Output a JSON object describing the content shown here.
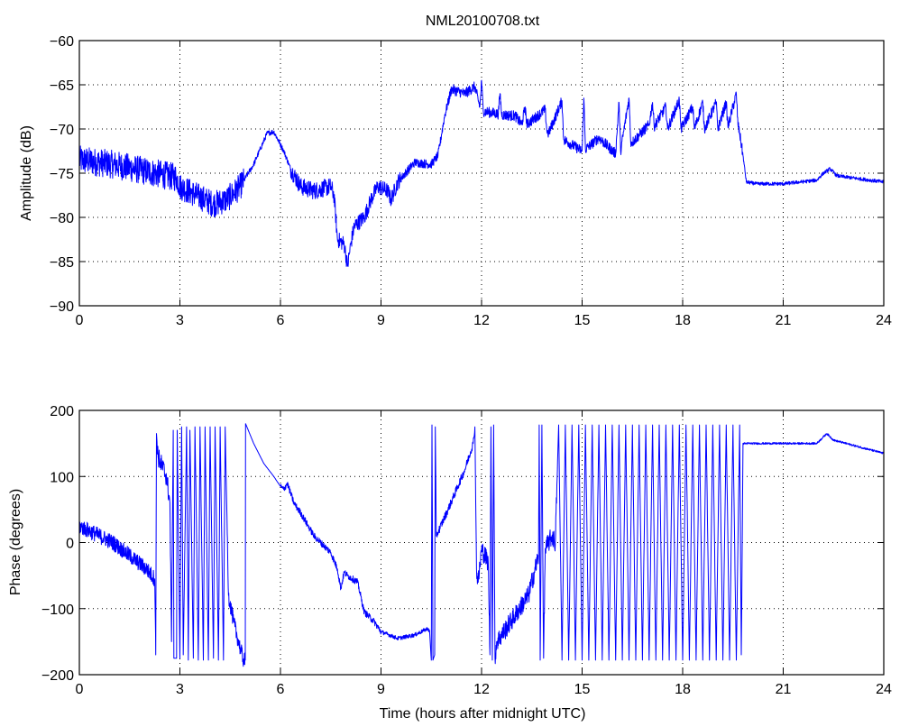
{
  "chart_data": [
    {
      "type": "line",
      "title": "NML20100708.txt",
      "xlabel": "",
      "ylabel": "Amplitude (dB)",
      "xlim": [
        0,
        24
      ],
      "ylim": [
        -90,
        -60
      ],
      "xticks": [
        "0",
        "3",
        "6",
        "9",
        "12",
        "15",
        "18",
        "21",
        "24"
      ],
      "yticks": [
        "-60",
        "-65",
        "-70",
        "-75",
        "-80",
        "-85",
        "-90"
      ],
      "grid": true,
      "color": "#0000ff",
      "series": [
        {
          "name": "Amplitude",
          "points": [
            [
              0,
              -73.5
            ],
            [
              1,
              -74
            ],
            [
              2,
              -74.8
            ],
            [
              2.9,
              -75.5
            ],
            [
              3,
              -76.5
            ],
            [
              3.5,
              -77.5
            ],
            [
              4,
              -78.5
            ],
            [
              4.4,
              -78
            ],
            [
              4.8,
              -76.5
            ],
            [
              5.2,
              -74
            ],
            [
              5.6,
              -70.5
            ],
            [
              5.8,
              -70.3
            ],
            [
              6.1,
              -72.5
            ],
            [
              6.3,
              -74.5
            ],
            [
              6.6,
              -76.5
            ],
            [
              7,
              -77
            ],
            [
              7.5,
              -76.5
            ],
            [
              7.6,
              -77.5
            ],
            [
              7.7,
              -82.5
            ],
            [
              7.9,
              -83
            ],
            [
              8.0,
              -85.5
            ],
            [
              8.1,
              -83
            ],
            [
              8.2,
              -81
            ],
            [
              8.5,
              -80
            ],
            [
              8.7,
              -78
            ],
            [
              8.9,
              -76.5
            ],
            [
              9.2,
              -77
            ],
            [
              9.3,
              -78
            ],
            [
              9.5,
              -76
            ],
            [
              10,
              -73.8
            ],
            [
              10.5,
              -74
            ],
            [
              10.7,
              -73
            ],
            [
              10.9,
              -68.5
            ],
            [
              11.1,
              -65.5
            ],
            [
              11.5,
              -66
            ],
            [
              11.8,
              -65.2
            ],
            [
              11.95,
              -67.5
            ],
            [
              12.0,
              -64.5
            ],
            [
              12.05,
              -68
            ],
            [
              12.5,
              -68.3
            ],
            [
              12.55,
              -66
            ],
            [
              12.6,
              -68.4
            ],
            [
              13,
              -68.5
            ],
            [
              13.2,
              -69.5
            ],
            [
              13.3,
              -67.5
            ],
            [
              13.35,
              -69.5
            ],
            [
              13.9,
              -67.8
            ],
            [
              13.95,
              -70.3
            ],
            [
              14,
              -70.5
            ],
            [
              14.4,
              -66.8
            ],
            [
              14.45,
              -71.2
            ],
            [
              15,
              -72.5
            ],
            [
              15.05,
              -66.5
            ],
            [
              15.1,
              -72.3
            ],
            [
              15.5,
              -71
            ],
            [
              16,
              -72.8
            ],
            [
              16.1,
              -67
            ],
            [
              16.15,
              -72.5
            ],
            [
              16.4,
              -66.5
            ],
            [
              16.45,
              -71.5
            ],
            [
              16.5,
              -71.5
            ],
            [
              17,
              -69.5
            ],
            [
              17.1,
              -67
            ],
            [
              17.15,
              -69.7
            ],
            [
              17.5,
              -67.5
            ],
            [
              17.55,
              -70
            ],
            [
              17.9,
              -66.7
            ],
            [
              17.95,
              -70
            ],
            [
              18.3,
              -67.5
            ],
            [
              18.35,
              -70
            ],
            [
              18.6,
              -67
            ],
            [
              18.65,
              -70
            ],
            [
              19,
              -67
            ],
            [
              19.05,
              -70
            ],
            [
              19.3,
              -67
            ],
            [
              19.35,
              -69.8
            ],
            [
              19.6,
              -66
            ],
            [
              19.65,
              -69.5
            ],
            [
              19.7,
              -70.5
            ],
            [
              19.8,
              -73
            ],
            [
              19.9,
              -76
            ],
            [
              20.2,
              -76.2
            ],
            [
              21,
              -76.2
            ],
            [
              22,
              -75.8
            ],
            [
              22.2,
              -75
            ],
            [
              22.4,
              -74.5
            ],
            [
              22.6,
              -75.3
            ],
            [
              24,
              -76
            ]
          ],
          "noise": [
            [
              0,
              2.9,
              1.6
            ],
            [
              2.9,
              4.9,
              1.5
            ],
            [
              4.9,
              6.3,
              0.3
            ],
            [
              6.3,
              7.6,
              1.0
            ],
            [
              7.6,
              9.6,
              0.9
            ],
            [
              9.6,
              11,
              0.5
            ],
            [
              11,
              19.8,
              0.6
            ],
            [
              19.8,
              24,
              0.2
            ]
          ]
        }
      ]
    },
    {
      "type": "line",
      "title": "",
      "xlabel": "Time (hours after midnight UTC)",
      "ylabel": "Phase (degrees)",
      "xlim": [
        0,
        24
      ],
      "ylim": [
        -200,
        200
      ],
      "xticks": [
        "0",
        "3",
        "6",
        "9",
        "12",
        "15",
        "18",
        "21",
        "24"
      ],
      "yticks": [
        "200",
        "100",
        "0",
        "-100",
        "-200"
      ],
      "grid": true,
      "color": "#0000ff",
      "series": [
        {
          "name": "Phase",
          "points": [
            [
              0,
              25
            ],
            [
              1,
              0
            ],
            [
              2,
              -40
            ],
            [
              2.25,
              -55
            ],
            [
              2.28,
              -170
            ],
            [
              2.3,
              165
            ],
            [
              2.35,
              130
            ],
            [
              2.6,
              100
            ],
            [
              2.7,
              60
            ],
            [
              2.75,
              -150
            ],
            [
              2.8,
              170
            ],
            [
              2.82,
              -175
            ],
            [
              2.9,
              -175
            ],
            [
              2.92,
              170
            ],
            [
              3.0,
              -175
            ],
            [
              3.05,
              175
            ],
            [
              3.1,
              -170
            ],
            [
              3.2,
              175
            ],
            [
              3.25,
              -178
            ],
            [
              3.3,
              170
            ],
            [
              3.4,
              -175
            ],
            [
              3.45,
              175
            ],
            [
              3.55,
              -178
            ],
            [
              3.6,
              175
            ],
            [
              3.7,
              -178
            ],
            [
              3.75,
              175
            ],
            [
              3.85,
              -178
            ],
            [
              3.9,
              175
            ],
            [
              4.0,
              -175
            ],
            [
              4.05,
              175
            ],
            [
              4.15,
              -178
            ],
            [
              4.2,
              175
            ],
            [
              4.3,
              -178
            ],
            [
              4.35,
              175
            ],
            [
              4.45,
              -80
            ],
            [
              4.6,
              -120
            ],
            [
              4.8,
              -160
            ],
            [
              4.9,
              -178
            ],
            [
              4.95,
              -178
            ],
            [
              4.96,
              180
            ],
            [
              5.2,
              150
            ],
            [
              5.5,
              120
            ],
            [
              5.8,
              100
            ],
            [
              6.0,
              85
            ],
            [
              6.1,
              80
            ],
            [
              6.2,
              90
            ],
            [
              6.4,
              60
            ],
            [
              6.6,
              45
            ],
            [
              7.0,
              10
            ],
            [
              7.5,
              -15
            ],
            [
              7.7,
              -40
            ],
            [
              7.8,
              -70
            ],
            [
              7.9,
              -45
            ],
            [
              8.0,
              -50
            ],
            [
              8.3,
              -60
            ],
            [
              8.5,
              -105
            ],
            [
              8.8,
              -120
            ],
            [
              9.0,
              -135
            ],
            [
              9.5,
              -145
            ],
            [
              10.0,
              -140
            ],
            [
              10.4,
              -130
            ],
            [
              10.45,
              -135
            ],
            [
              10.5,
              -178
            ],
            [
              10.52,
              178
            ],
            [
              10.55,
              -178
            ],
            [
              10.6,
              -170
            ],
            [
              10.62,
              175
            ],
            [
              10.65,
              10
            ],
            [
              11.0,
              50
            ],
            [
              11.5,
              110
            ],
            [
              11.75,
              150
            ],
            [
              11.8,
              175
            ],
            [
              11.85,
              -40
            ],
            [
              11.9,
              -60
            ],
            [
              12.0,
              -10
            ],
            [
              12.2,
              -30
            ],
            [
              12.25,
              -170
            ],
            [
              12.28,
              175
            ],
            [
              12.32,
              -178
            ],
            [
              12.36,
              178
            ],
            [
              12.4,
              -175
            ],
            [
              12.45,
              -150
            ],
            [
              12.6,
              -140
            ],
            [
              13.0,
              -110
            ],
            [
              13.4,
              -80
            ],
            [
              13.6,
              -40
            ],
            [
              13.7,
              -20
            ],
            [
              13.72,
              178
            ],
            [
              13.75,
              -178
            ],
            [
              13.8,
              178
            ],
            [
              13.85,
              -175
            ],
            [
              13.9,
              -10
            ],
            [
              14.1,
              10
            ],
            [
              14.2,
              0
            ],
            [
              14.3,
              178
            ],
            [
              14.4,
              -178
            ],
            [
              14.5,
              178
            ],
            [
              14.6,
              -178
            ],
            [
              14.7,
              178
            ],
            [
              14.8,
              -178
            ],
            [
              14.9,
              178
            ],
            [
              15.0,
              -178
            ],
            [
              15.1,
              178
            ],
            [
              15.2,
              -178
            ],
            [
              15.3,
              178
            ],
            [
              15.4,
              -178
            ],
            [
              15.5,
              178
            ],
            [
              15.6,
              -178
            ],
            [
              15.7,
              178
            ],
            [
              15.8,
              -178
            ],
            [
              15.9,
              178
            ],
            [
              16.0,
              -178
            ],
            [
              16.1,
              178
            ],
            [
              16.2,
              -178
            ],
            [
              16.3,
              178
            ],
            [
              16.4,
              -178
            ],
            [
              16.5,
              178
            ],
            [
              16.6,
              -178
            ],
            [
              16.7,
              178
            ],
            [
              16.8,
              -178
            ],
            [
              16.9,
              178
            ],
            [
              17.0,
              -178
            ],
            [
              17.1,
              178
            ],
            [
              17.2,
              -178
            ],
            [
              17.3,
              178
            ],
            [
              17.4,
              -178
            ],
            [
              17.5,
              178
            ],
            [
              17.6,
              -178
            ],
            [
              17.7,
              178
            ],
            [
              17.8,
              -178
            ],
            [
              17.9,
              178
            ],
            [
              18.0,
              -178
            ],
            [
              18.1,
              178
            ],
            [
              18.2,
              -178
            ],
            [
              18.3,
              178
            ],
            [
              18.4,
              -178
            ],
            [
              18.5,
              178
            ],
            [
              18.6,
              -178
            ],
            [
              18.7,
              178
            ],
            [
              18.8,
              -178
            ],
            [
              18.9,
              178
            ],
            [
              19.0,
              -178
            ],
            [
              19.1,
              178
            ],
            [
              19.2,
              -178
            ],
            [
              19.3,
              178
            ],
            [
              19.4,
              -178
            ],
            [
              19.5,
              178
            ],
            [
              19.6,
              -178
            ],
            [
              19.7,
              178
            ],
            [
              19.75,
              -170
            ],
            [
              19.8,
              150
            ],
            [
              21,
              150
            ],
            [
              22,
              150
            ],
            [
              22.3,
              165
            ],
            [
              22.5,
              155
            ],
            [
              24,
              135
            ]
          ],
          "noise": [
            [
              0,
              2.3,
              12
            ],
            [
              2.3,
              2.75,
              15
            ],
            [
              4.4,
              4.95,
              12
            ],
            [
              6,
              9,
              5
            ],
            [
              9,
              10.45,
              3
            ],
            [
              10.65,
              11.85,
              6
            ],
            [
              11.85,
              12.25,
              15
            ],
            [
              12.4,
              13.7,
              15
            ],
            [
              13.85,
              14.25,
              15
            ],
            [
              19.8,
              24,
              1.5
            ]
          ]
        }
      ]
    }
  ]
}
